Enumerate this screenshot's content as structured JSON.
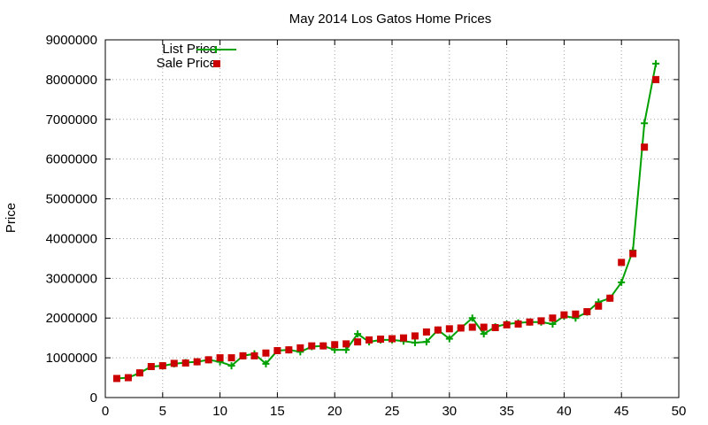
{
  "chart_data": {
    "type": "line",
    "title": "May 2014 Los Gatos Home Prices",
    "xlabel": "",
    "ylabel": "Price",
    "xlim": [
      0,
      50
    ],
    "ylim": [
      0,
      9000000
    ],
    "xticks": [
      0,
      5,
      10,
      15,
      20,
      25,
      30,
      35,
      40,
      45,
      50
    ],
    "yticks": [
      0,
      1000000,
      2000000,
      3000000,
      4000000,
      5000000,
      6000000,
      7000000,
      8000000,
      9000000
    ],
    "grid": true,
    "legend_position": "top-left",
    "series": [
      {
        "name": "List Price",
        "style": "line-with-plus-markers",
        "color": "#00a000",
        "x": [
          1,
          2,
          3,
          4,
          5,
          6,
          7,
          8,
          9,
          10,
          11,
          12,
          13,
          14,
          15,
          16,
          17,
          18,
          19,
          20,
          21,
          22,
          23,
          24,
          25,
          26,
          27,
          28,
          29,
          30,
          31,
          32,
          33,
          34,
          35,
          36,
          37,
          38,
          39,
          40,
          41,
          42,
          43,
          44,
          45,
          46,
          47,
          48
        ],
        "values": [
          480000,
          500000,
          620000,
          780000,
          800000,
          850000,
          880000,
          900000,
          950000,
          900000,
          800000,
          1050000,
          1100000,
          850000,
          1180000,
          1200000,
          1150000,
          1280000,
          1300000,
          1200000,
          1200000,
          1600000,
          1400000,
          1450000,
          1450000,
          1420000,
          1380000,
          1400000,
          1700000,
          1480000,
          1750000,
          2000000,
          1600000,
          1780000,
          1850000,
          1880000,
          1900000,
          1900000,
          1850000,
          2050000,
          2000000,
          2150000,
          2400000,
          2500000,
          2900000,
          3700000,
          6900000,
          8400000
        ]
      },
      {
        "name": "Sale Price",
        "style": "square-markers",
        "color": "#cc0000",
        "x": [
          1,
          2,
          3,
          4,
          5,
          6,
          7,
          8,
          9,
          10,
          11,
          12,
          13,
          14,
          15,
          16,
          17,
          18,
          19,
          20,
          21,
          22,
          23,
          24,
          25,
          26,
          27,
          28,
          29,
          30,
          31,
          32,
          33,
          34,
          35,
          36,
          37,
          38,
          39,
          40,
          41,
          42,
          43,
          44,
          45,
          46,
          47,
          48
        ],
        "values": [
          480000,
          500000,
          620000,
          780000,
          800000,
          860000,
          870000,
          900000,
          950000,
          1000000,
          1000000,
          1050000,
          1050000,
          1120000,
          1180000,
          1200000,
          1250000,
          1300000,
          1300000,
          1330000,
          1350000,
          1400000,
          1450000,
          1470000,
          1480000,
          1500000,
          1550000,
          1650000,
          1700000,
          1730000,
          1750000,
          1770000,
          1770000,
          1760000,
          1830000,
          1850000,
          1900000,
          1930000,
          2000000,
          2080000,
          2100000,
          2160000,
          2300000,
          2500000,
          3400000,
          3620000,
          6300000,
          8000000
        ]
      }
    ]
  }
}
